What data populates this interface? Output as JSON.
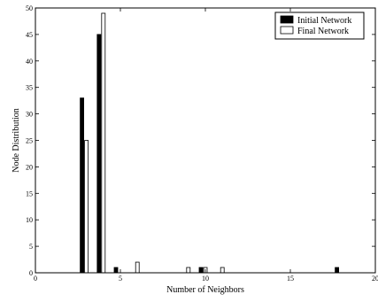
{
  "chart_data": {
    "type": "bar",
    "xlabel": "Number of Neighbors",
    "ylabel": "Node Distribution",
    "xlim": [
      0,
      20
    ],
    "ylim": [
      0,
      50
    ],
    "xticks": [
      0,
      5,
      10,
      15,
      20
    ],
    "yticks": [
      0,
      5,
      10,
      15,
      20,
      25,
      30,
      35,
      40,
      45,
      50
    ],
    "grid": false,
    "legend_position": "top-right",
    "series": [
      {
        "name": "Initial Network",
        "fill": "#000000",
        "points": [
          {
            "x": 3,
            "y": 33
          },
          {
            "x": 4,
            "y": 45
          },
          {
            "x": 5,
            "y": 1
          },
          {
            "x": 10,
            "y": 1
          },
          {
            "x": 18,
            "y": 1
          }
        ]
      },
      {
        "name": "Final Network",
        "fill": "#ffffff",
        "points": [
          {
            "x": 3,
            "y": 25
          },
          {
            "x": 4,
            "y": 49
          },
          {
            "x": 6,
            "y": 2
          },
          {
            "x": 9,
            "y": 1
          },
          {
            "x": 10,
            "y": 1
          },
          {
            "x": 11,
            "y": 1
          }
        ]
      }
    ]
  }
}
